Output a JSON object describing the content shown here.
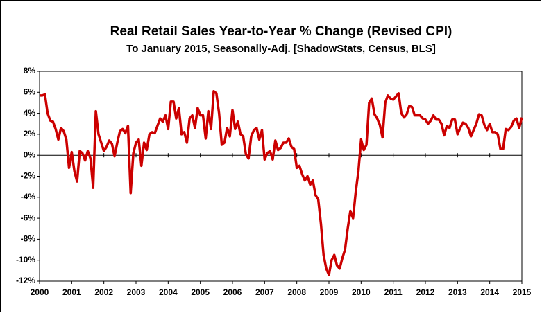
{
  "chart_data": {
    "type": "line",
    "title": "Real Retail Sales Year-to-Year %  Change (Revised CPI)",
    "subtitle": "To January 2015, Seasonally-Adj. [ShadowStats, Census, BLS]",
    "xlim": [
      2000,
      2015
    ],
    "xticks": [
      2000,
      2001,
      2002,
      2003,
      2004,
      2005,
      2006,
      2007,
      2008,
      2009,
      2010,
      2011,
      2012,
      2013,
      2014,
      2015
    ],
    "ylim": [
      -12,
      8
    ],
    "yticks": [
      {
        "value": -12,
        "label": "-12%"
      },
      {
        "value": -10,
        "label": "-10%"
      },
      {
        "value": -8,
        "label": "-8%"
      },
      {
        "value": -6,
        "label": "-6%"
      },
      {
        "value": -4,
        "label": "-4%"
      },
      {
        "value": -2,
        "label": "-2%"
      },
      {
        "value": 0,
        "label": "0%"
      },
      {
        "value": 2,
        "label": "2%"
      },
      {
        "value": 4,
        "label": "4%"
      },
      {
        "value": 6,
        "label": "6%"
      },
      {
        "value": 8,
        "label": "8%"
      }
    ],
    "grid": false,
    "color": "#cc0000",
    "x": [
      2000,
      2000.083,
      2000.167,
      2000.25,
      2000.333,
      2000.417,
      2000.5,
      2000.583,
      2000.667,
      2000.75,
      2000.833,
      2000.917,
      2001,
      2001.083,
      2001.167,
      2001.25,
      2001.333,
      2001.417,
      2001.5,
      2001.583,
      2001.667,
      2001.75,
      2001.833,
      2001.917,
      2002,
      2002.083,
      2002.167,
      2002.25,
      2002.333,
      2002.417,
      2002.5,
      2002.583,
      2002.667,
      2002.75,
      2002.833,
      2002.917,
      2003,
      2003.083,
      2003.167,
      2003.25,
      2003.333,
      2003.417,
      2003.5,
      2003.583,
      2003.667,
      2003.75,
      2003.833,
      2003.917,
      2004,
      2004.083,
      2004.167,
      2004.25,
      2004.333,
      2004.417,
      2004.5,
      2004.583,
      2004.667,
      2004.75,
      2004.833,
      2004.917,
      2005,
      2005.083,
      2005.167,
      2005.25,
      2005.333,
      2005.417,
      2005.5,
      2005.583,
      2005.667,
      2005.75,
      2005.833,
      2005.917,
      2006,
      2006.083,
      2006.167,
      2006.25,
      2006.333,
      2006.417,
      2006.5,
      2006.583,
      2006.667,
      2006.75,
      2006.833,
      2006.917,
      2007,
      2007.083,
      2007.167,
      2007.25,
      2007.333,
      2007.417,
      2007.5,
      2007.583,
      2007.667,
      2007.75,
      2007.833,
      2007.917,
      2008,
      2008.083,
      2008.167,
      2008.25,
      2008.333,
      2008.417,
      2008.5,
      2008.583,
      2008.667,
      2008.75,
      2008.833,
      2008.917,
      2009,
      2009.083,
      2009.167,
      2009.25,
      2009.333,
      2009.417,
      2009.5,
      2009.583,
      2009.667,
      2009.75,
      2009.833,
      2009.917,
      2010,
      2010.083,
      2010.167,
      2010.25,
      2010.333,
      2010.417,
      2010.5,
      2010.583,
      2010.667,
      2010.75,
      2010.833,
      2010.917,
      2011,
      2011.083,
      2011.167,
      2011.25,
      2011.333,
      2011.417,
      2011.5,
      2011.583,
      2011.667,
      2011.75,
      2011.833,
      2011.917,
      2012,
      2012.083,
      2012.167,
      2012.25,
      2012.333,
      2012.417,
      2012.5,
      2012.583,
      2012.667,
      2012.75,
      2012.833,
      2012.917,
      2013,
      2013.083,
      2013.167,
      2013.25,
      2013.333,
      2013.417,
      2013.5,
      2013.583,
      2013.667,
      2013.75,
      2013.833,
      2013.917,
      2014,
      2014.083,
      2014.167,
      2014.25,
      2014.333,
      2014.417,
      2014.5,
      2014.583,
      2014.667,
      2014.75,
      2014.833,
      2014.917,
      2015
    ],
    "values": [
      5.7,
      5.7,
      5.8,
      4.0,
      3.3,
      3.2,
      2.5,
      1.5,
      2.6,
      2.3,
      1.5,
      -1.2,
      0.3,
      -1.5,
      -2.5,
      0.4,
      0.2,
      -0.5,
      0.4,
      -0.3,
      -3.1,
      4.2,
      2.0,
      1.2,
      0.4,
      0.8,
      1.4,
      1.1,
      -0.1,
      1.2,
      2.3,
      2.5,
      2.1,
      2.8,
      -3.6,
      0.2,
      1.2,
      1.5,
      -1.0,
      1.2,
      0.5,
      2.0,
      2.2,
      2.1,
      2.8,
      3.5,
      3.2,
      3.8,
      2.5,
      5.1,
      5.1,
      3.5,
      4.5,
      2.0,
      2.2,
      1.2,
      3.5,
      3.8,
      2.6,
      4.5,
      3.8,
      3.8,
      1.6,
      4.2,
      2.5,
      6.1,
      5.9,
      4.0,
      1.0,
      1.2,
      2.6,
      1.8,
      4.3,
      2.5,
      3.2,
      2.0,
      1.8,
      0.1,
      -0.3,
      1.8,
      2.4,
      2.6,
      1.5,
      2.4,
      -0.4,
      0.2,
      0.4,
      -0.4,
      1.4,
      0.5,
      0.7,
      1.2,
      1.2,
      1.6,
      0.8,
      0.6,
      -1.2,
      -1.0,
      -1.8,
      -2.4,
      -2.0,
      -2.8,
      -2.4,
      -3.8,
      -4.2,
      -6.5,
      -9.5,
      -10.8,
      -11.4,
      -10.0,
      -9.5,
      -10.5,
      -10.8,
      -9.8,
      -9.0,
      -7.0,
      -5.3,
      -6.0,
      -3.5,
      -1.5,
      1.5,
      0.5,
      1.0,
      5.0,
      5.4,
      3.9,
      3.5,
      2.9,
      1.7,
      5.0,
      5.7,
      5.4,
      5.3,
      5.6,
      5.9,
      4.0,
      3.6,
      3.9,
      4.7,
      4.6,
      3.8,
      3.8,
      3.8,
      3.5,
      3.4,
      3.0,
      3.3,
      3.8,
      3.4,
      3.4,
      3.0,
      1.9,
      2.8,
      2.6,
      3.4,
      3.4,
      2.0,
      2.6,
      3.1,
      3.0,
      2.6,
      1.8,
      2.4,
      3.0,
      3.9,
      3.8,
      2.9,
      2.4,
      3.0,
      2.2,
      2.2,
      2.0,
      0.6,
      0.6,
      2.5,
      2.4,
      2.7,
      3.3,
      3.5,
      2.6,
      3.6
    ]
  }
}
